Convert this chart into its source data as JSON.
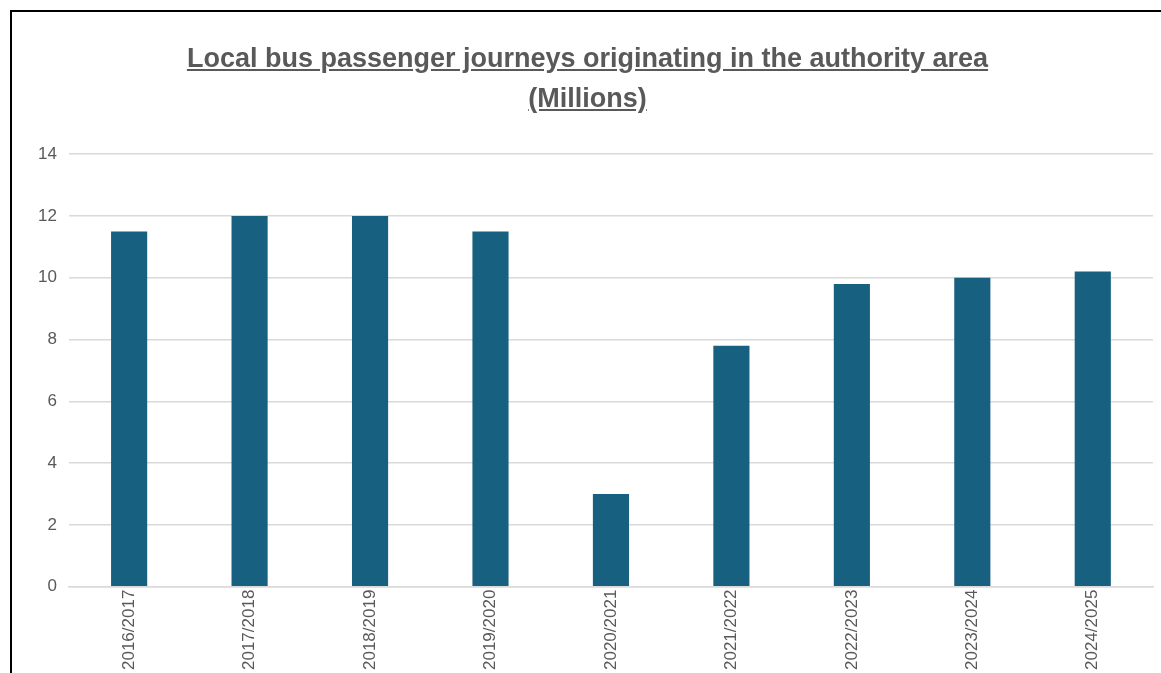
{
  "chart_data": {
    "type": "bar",
    "title": "Local bus passenger journeys originating in the authority area (Millions)",
    "categories": [
      "2016/2017",
      "2017/2018",
      "2018/2019",
      "2019/2020",
      "2020/2021",
      "2021/2022",
      "2022/2023",
      "2023/2024",
      "2024/2025"
    ],
    "values": [
      11.5,
      12.0,
      12.0,
      11.5,
      3.0,
      7.8,
      9.8,
      10.0,
      10.2
    ],
    "color": "#17607f",
    "ylim": [
      0,
      14
    ],
    "yticks": [
      0,
      2,
      4,
      6,
      8,
      10,
      12,
      14
    ],
    "grid": "y"
  }
}
